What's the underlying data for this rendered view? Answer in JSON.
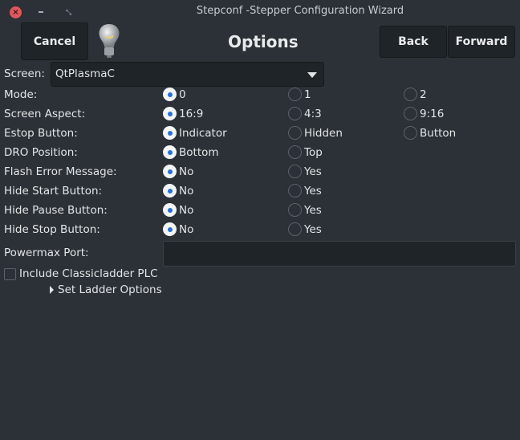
{
  "window": {
    "title": "Stepconf -Stepper Configuration Wizard"
  },
  "header": {
    "cancel": "Cancel",
    "title": "Options",
    "back": "Back",
    "forward": "Forward"
  },
  "screen": {
    "label": "Screen:",
    "value": "QtPlasmaC"
  },
  "rows": [
    {
      "label": "Mode:",
      "options": [
        "0",
        "1",
        "2"
      ],
      "selected": 0
    },
    {
      "label": "Screen Aspect:",
      "options": [
        "16:9",
        "4:3",
        "9:16"
      ],
      "selected": 0
    },
    {
      "label": "Estop Button:",
      "options": [
        "Indicator",
        "Hidden",
        "Button"
      ],
      "selected": 0
    },
    {
      "label": "DRO Position:",
      "options": [
        "Bottom",
        "Top"
      ],
      "selected": 0
    },
    {
      "label": "Flash Error Message:",
      "options": [
        "No",
        "Yes"
      ],
      "selected": 0
    },
    {
      "label": "Hide Start Button:",
      "options": [
        "No",
        "Yes"
      ],
      "selected": 0
    },
    {
      "label": "Hide Pause Button:",
      "options": [
        "No",
        "Yes"
      ],
      "selected": 0
    },
    {
      "label": "Hide Stop Button:",
      "options": [
        "No",
        "Yes"
      ],
      "selected": 0
    }
  ],
  "powermax": {
    "label": "Powermax Port:",
    "value": ""
  },
  "classicladder": {
    "label": "Include Classicladder PLC",
    "checked": false
  },
  "ladder_options": {
    "label": "Set Ladder Options",
    "expanded": false
  },
  "colors": {
    "background": "#2b3137",
    "accent": "#2a6fd6",
    "close": "#e0575b"
  }
}
